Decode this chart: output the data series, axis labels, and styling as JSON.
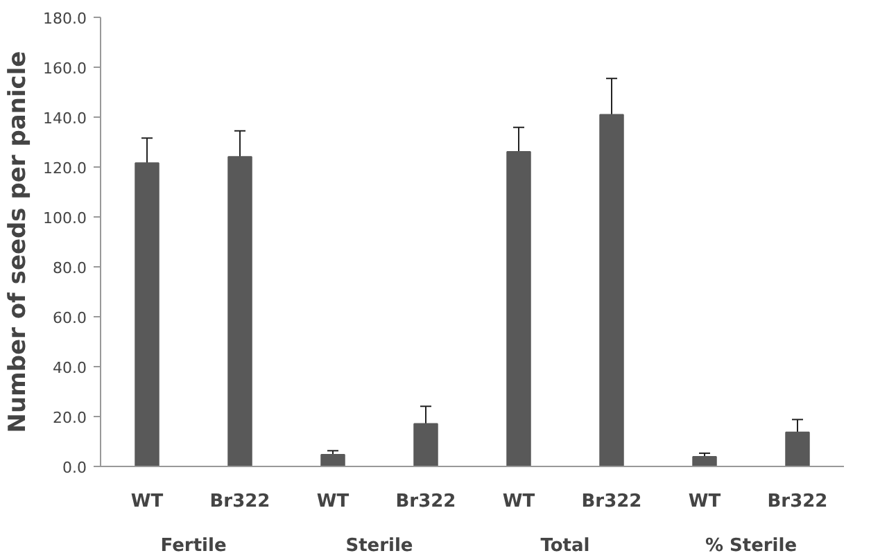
{
  "chart_data": {
    "type": "bar",
    "ylabel": "Number of seeds per panicle",
    "categories": [
      "WT",
      "Br322",
      "WT",
      "Br322",
      "WT",
      "Br322",
      "WT",
      "Br322"
    ],
    "annotations": [
      "Fertile",
      "Sterile",
      "Total",
      "% Sterile"
    ],
    "values": [
      121.6,
      124.1,
      4.7,
      17.1,
      126.1,
      141.0,
      3.9,
      13.7
    ],
    "errors": [
      10.0,
      10.4,
      1.6,
      7.0,
      9.8,
      14.5,
      1.4,
      5.1
    ],
    "color": "#595959",
    "ylim": [
      0,
      180
    ],
    "yticks": [
      {
        "value": 0,
        "label": "0.0"
      },
      {
        "value": 20,
        "label": "20.0"
      },
      {
        "value": 40,
        "label": "40.0"
      },
      {
        "value": 60,
        "label": "60.0"
      },
      {
        "value": 80,
        "label": "80.0"
      },
      {
        "value": 100,
        "label": "100.0"
      },
      {
        "value": 120,
        "label": "120.0"
      },
      {
        "value": 140,
        "label": "140.0"
      },
      {
        "value": 160,
        "label": "160.0"
      },
      {
        "value": 180,
        "label": "180.0"
      }
    ],
    "grid": false
  }
}
